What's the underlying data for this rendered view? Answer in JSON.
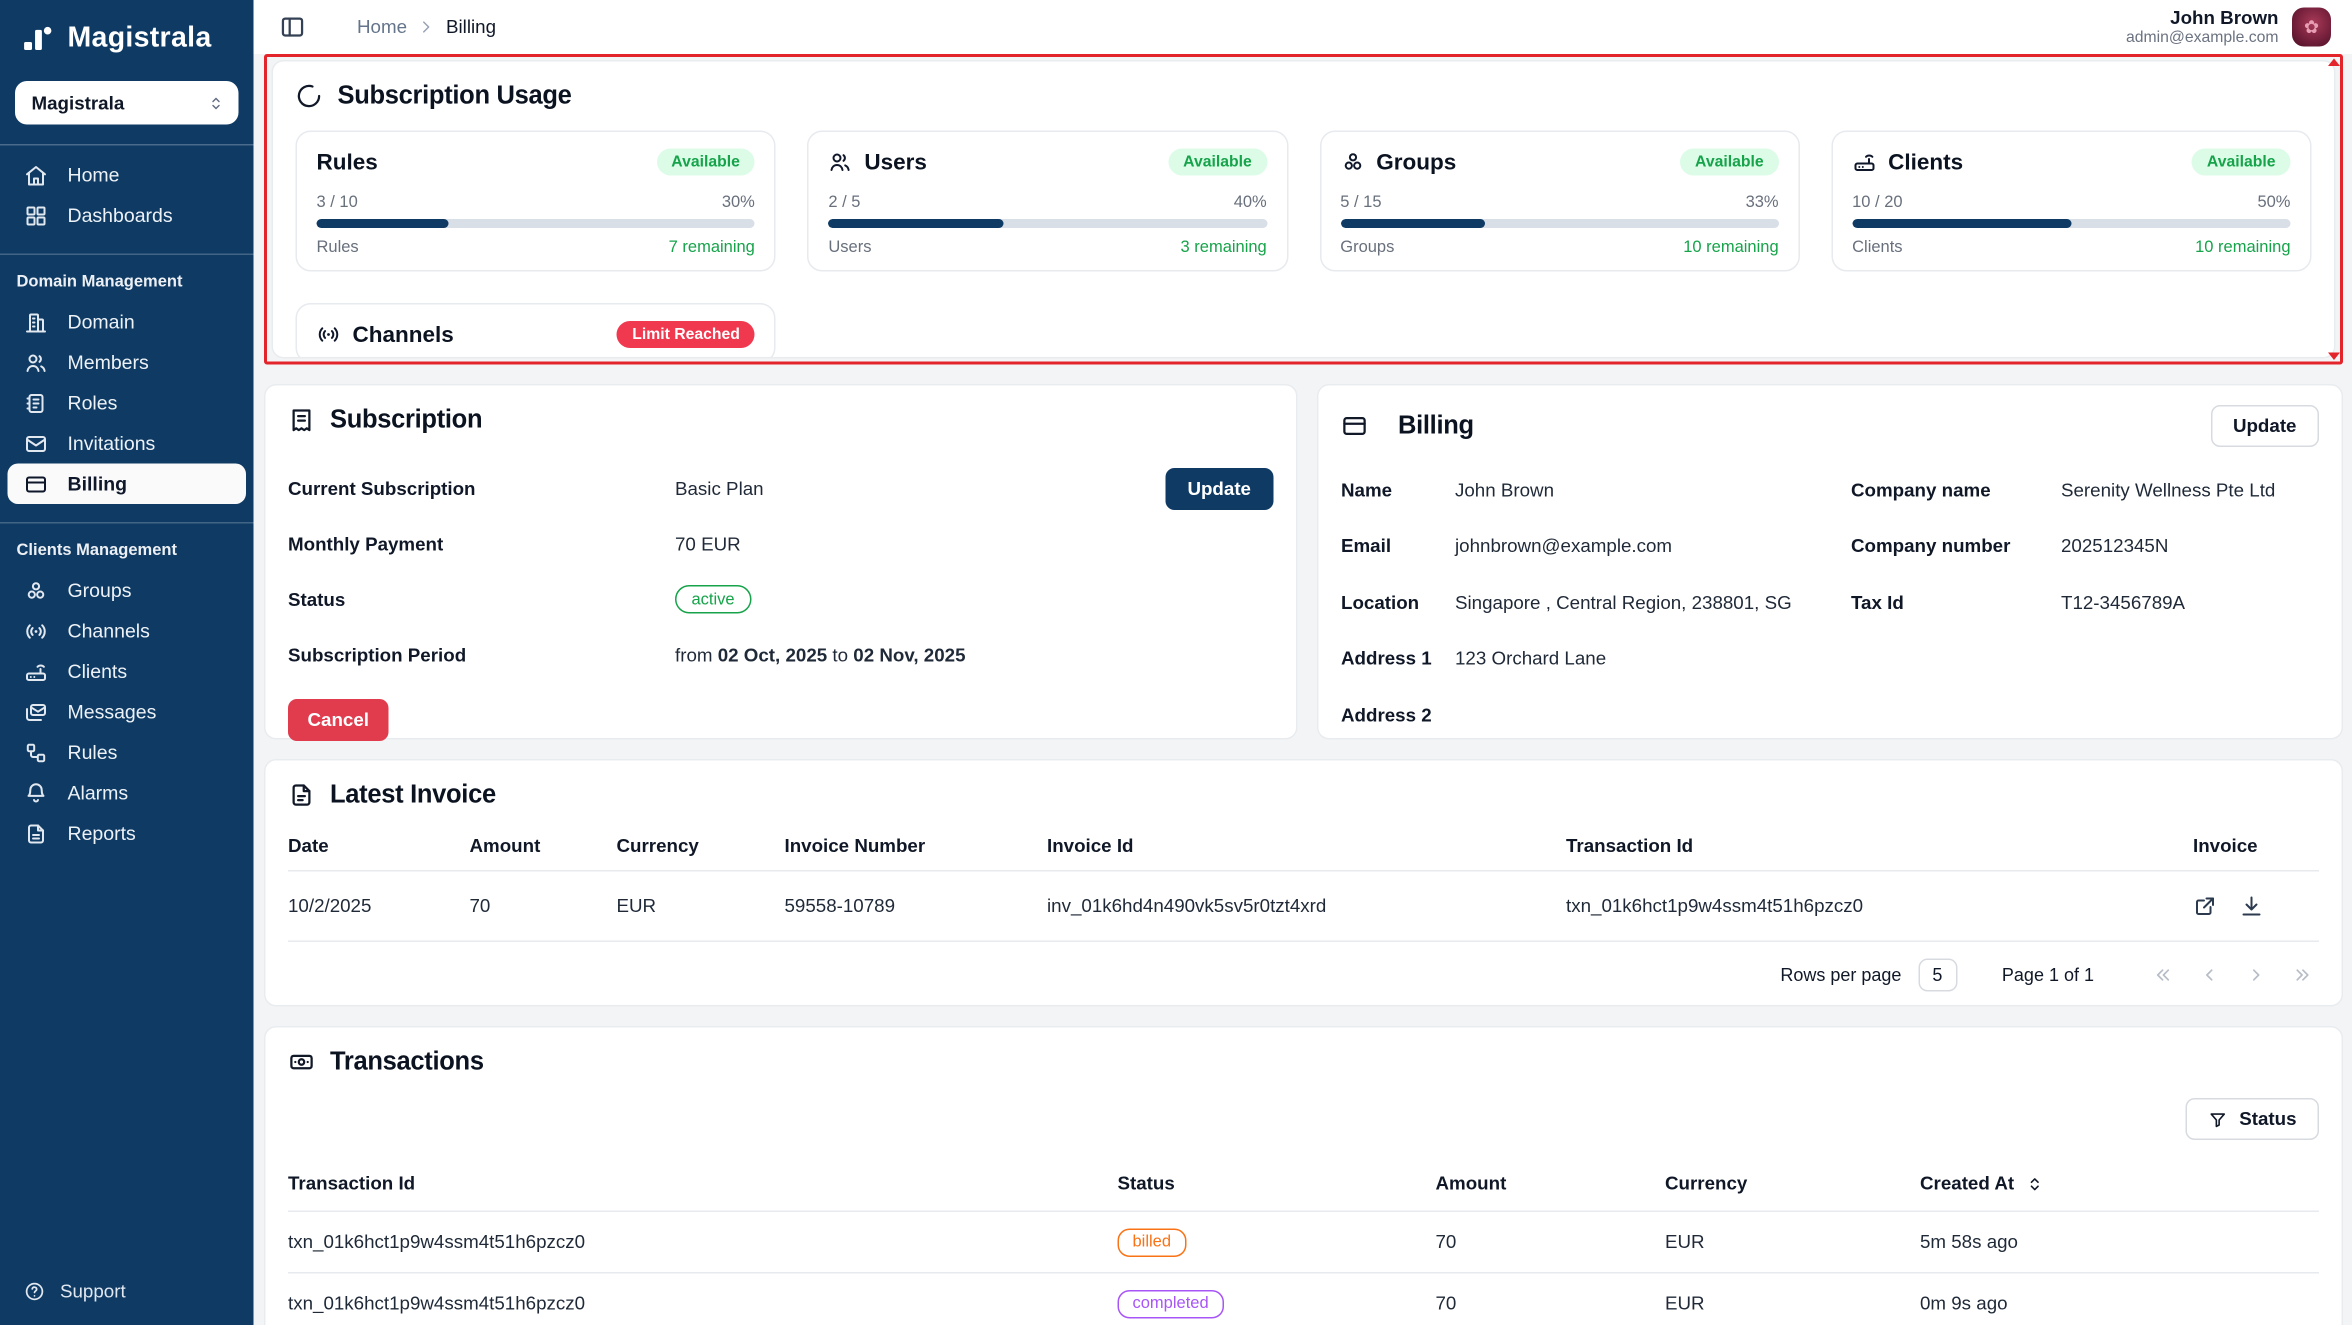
{
  "app": {
    "name": "Magistrala"
  },
  "topbar": {
    "breadcrumb": {
      "home": "Home",
      "current": "Billing"
    },
    "user": {
      "name": "John Brown",
      "email": "admin@example.com"
    }
  },
  "sidebar": {
    "workspace_select": {
      "value": "Magistrala"
    },
    "support_label": "Support",
    "sections": [
      {
        "label": "",
        "items": [
          {
            "name": "sidebar-item-home",
            "label": "Home",
            "icon": "home"
          },
          {
            "name": "sidebar-item-dashboards",
            "label": "Dashboards",
            "icon": "dashboards"
          }
        ]
      },
      {
        "label": "Domain Management",
        "items": [
          {
            "name": "sidebar-item-domain",
            "label": "Domain",
            "icon": "domain"
          },
          {
            "name": "sidebar-item-members",
            "label": "Members",
            "icon": "members"
          },
          {
            "name": "sidebar-item-roles",
            "label": "Roles",
            "icon": "roles"
          },
          {
            "name": "sidebar-item-invitations",
            "label": "Invitations",
            "icon": "invitations"
          },
          {
            "name": "sidebar-item-billing",
            "label": "Billing",
            "icon": "billing",
            "active": true
          }
        ]
      },
      {
        "label": "Clients Management",
        "items": [
          {
            "name": "sidebar-item-groups",
            "label": "Groups",
            "icon": "groups"
          },
          {
            "name": "sidebar-item-channels",
            "label": "Channels",
            "icon": "channels"
          },
          {
            "name": "sidebar-item-clients",
            "label": "Clients",
            "icon": "clients"
          },
          {
            "name": "sidebar-item-messages",
            "label": "Messages",
            "icon": "messages"
          },
          {
            "name": "sidebar-item-rules",
            "label": "Rules",
            "icon": "rules"
          },
          {
            "name": "sidebar-item-alarms",
            "label": "Alarms",
            "icon": "alarms"
          },
          {
            "name": "sidebar-item-reports",
            "label": "Reports",
            "icon": "reports"
          }
        ]
      }
    ]
  },
  "usage": {
    "title": "Subscription Usage",
    "cards": [
      {
        "title": "Rules",
        "icon": "",
        "badge": "Available",
        "badge_type": "available",
        "used": "3 / 10",
        "percent": "30%",
        "fill": 30,
        "footer_label": "Rules",
        "remaining": "7 remaining"
      },
      {
        "title": "Users",
        "icon": "members",
        "badge": "Available",
        "badge_type": "available",
        "used": "2 / 5",
        "percent": "40%",
        "fill": 40,
        "footer_label": "Users",
        "remaining": "3 remaining"
      },
      {
        "title": "Groups",
        "icon": "groups",
        "badge": "Available",
        "badge_type": "available",
        "used": "5 / 15",
        "percent": "33%",
        "fill": 33,
        "footer_label": "Groups",
        "remaining": "10 remaining"
      },
      {
        "title": "Clients",
        "icon": "clients",
        "badge": "Available",
        "badge_type": "available",
        "used": "10 / 20",
        "percent": "50%",
        "fill": 50,
        "footer_label": "Clients",
        "remaining": "10 remaining"
      }
    ],
    "overflow_card": {
      "title": "Channels",
      "icon": "channels",
      "badge": "Limit Reached",
      "badge_type": "limit"
    }
  },
  "subscription": {
    "title": "Subscription",
    "current_label": "Current Subscription",
    "current_value": "Basic Plan",
    "update_label": "Update",
    "monthly_label": "Monthly Payment",
    "monthly_value": "70 EUR",
    "status_label": "Status",
    "status_value": "active",
    "period_label": "Subscription Period",
    "period_from_label": "from",
    "period_from": "02 Oct, 2025",
    "period_to_label": "to",
    "period_to": "02 Nov, 2025",
    "cancel_label": "Cancel"
  },
  "billing": {
    "title": "Billing",
    "update_label": "Update",
    "fields": [
      {
        "label": "Name",
        "value": "John Brown",
        "label2": "Company name",
        "value2": "Serenity Wellness Pte Ltd"
      },
      {
        "label": "Email",
        "value": "johnbrown@example.com",
        "label2": "Company number",
        "value2": "202512345N"
      },
      {
        "label": "Location",
        "value": "Singapore , Central Region, 238801, SG",
        "label2": "Tax Id",
        "value2": "T12-3456789A"
      },
      {
        "label": "Address 1",
        "value": "123 Orchard Lane",
        "label2": "",
        "value2": ""
      },
      {
        "label": "Address 2",
        "value": "",
        "label2": "",
        "value2": ""
      }
    ]
  },
  "latest_invoice": {
    "title": "Latest Invoice",
    "columns": [
      "Date",
      "Amount",
      "Currency",
      "Invoice Number",
      "Invoice Id",
      "Transaction Id",
      "Invoice"
    ],
    "rows": [
      {
        "date": "10/2/2025",
        "amount": "70",
        "currency": "EUR",
        "invoice_number": "59558-10789",
        "invoice_id": "inv_01k6hd4n490vk5sv5r0tzt4xrd",
        "transaction_id": "txn_01k6hct1p9w4ssm4t51h6pzcz0"
      }
    ],
    "pagination": {
      "rows_per_page_label": "Rows per page",
      "rows_per_page": "5",
      "page_label": "Page 1 of 1"
    }
  },
  "transactions": {
    "title": "Transactions",
    "filter_label": "Status",
    "columns": [
      "Transaction Id",
      "Status",
      "Amount",
      "Currency",
      "Created At"
    ],
    "rows": [
      {
        "transaction_id": "txn_01k6hct1p9w4ssm4t51h6pzcz0",
        "status": "billed",
        "amount": "70",
        "currency": "EUR",
        "created_at": "5m 58s ago"
      },
      {
        "transaction_id": "txn_01k6hct1p9w4ssm4t51h6pzcz0",
        "status": "completed",
        "amount": "70",
        "currency": "EUR",
        "created_at": "0m 9s ago"
      }
    ]
  },
  "colors": {
    "navy": "#0E3A64",
    "annotation_red": "#E3242B",
    "green": "#16A34A",
    "green_bg": "#DCFCE7",
    "limit_red": "#F0384F",
    "danger_red": "#E13B4E",
    "billed_orange": "#F97316",
    "completed_purple": "#A855F7"
  }
}
